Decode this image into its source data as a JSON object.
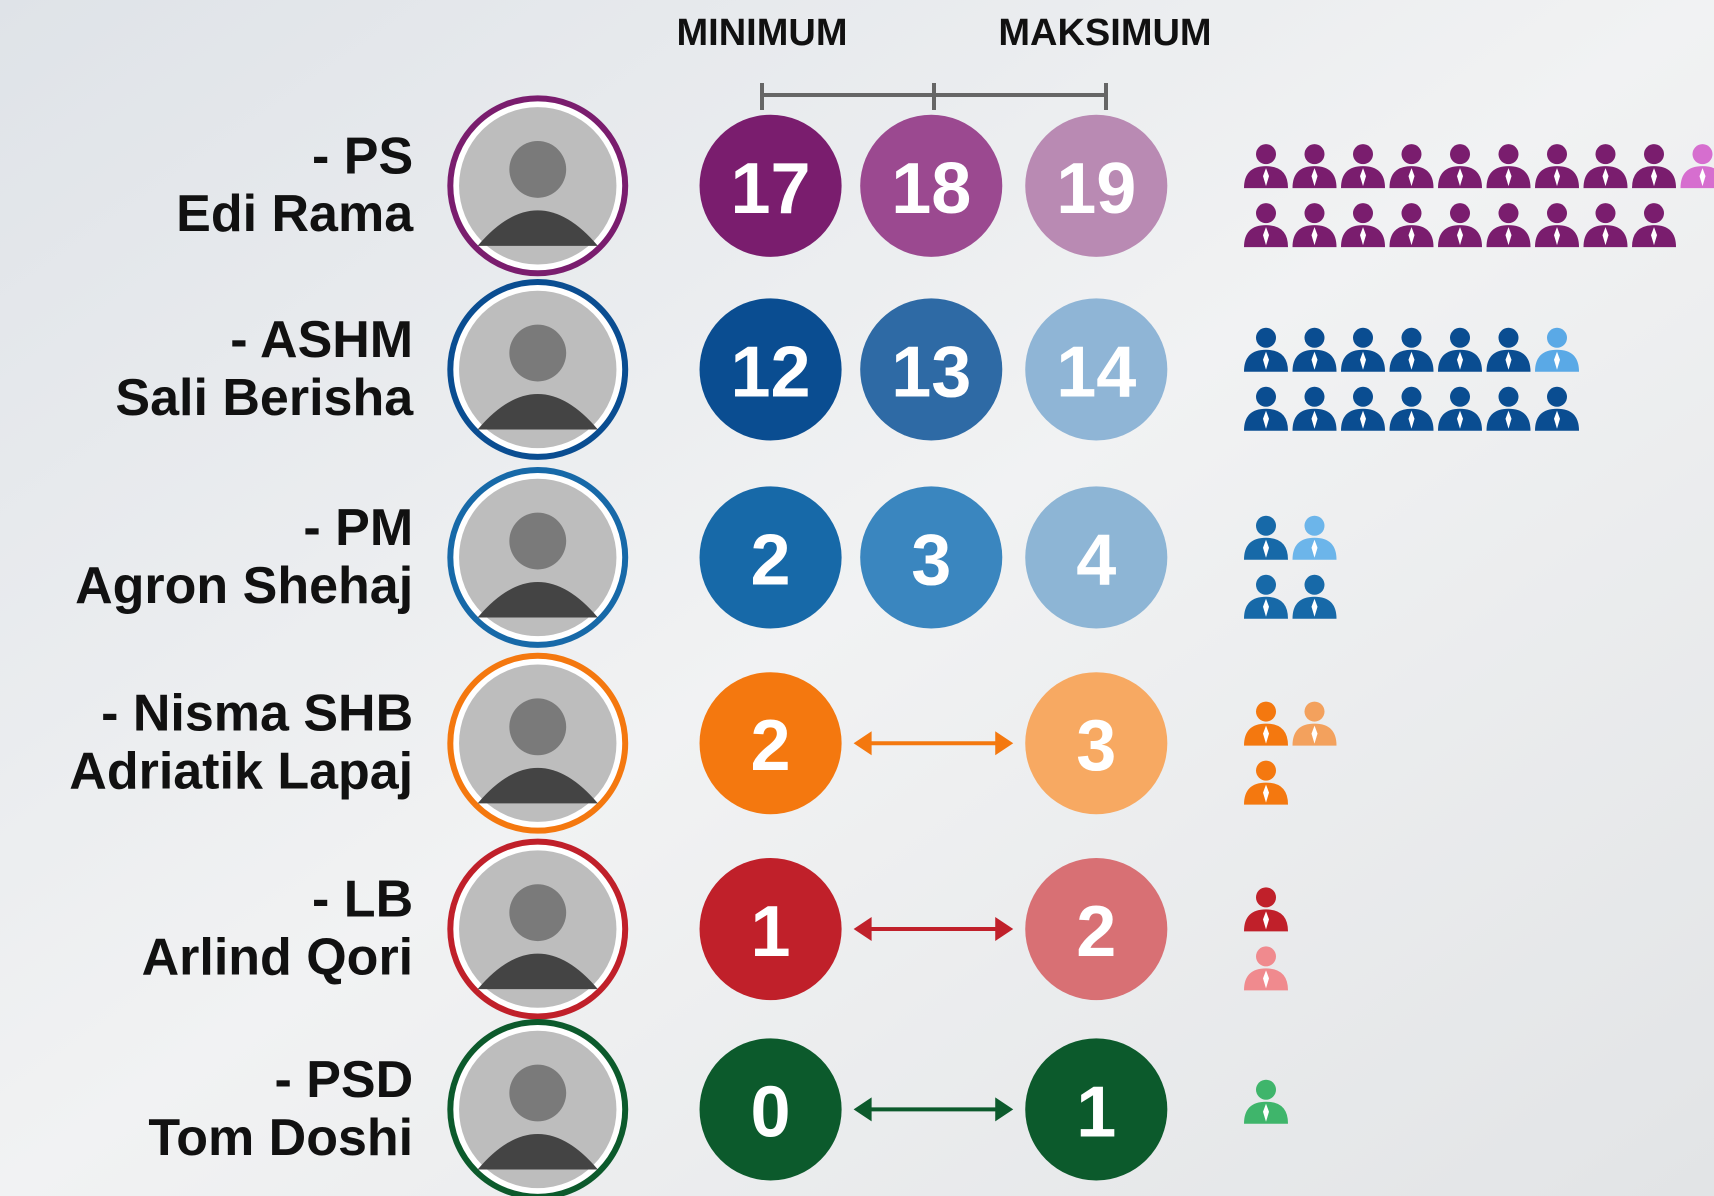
{
  "header": {
    "min_label": "MINIMUM",
    "max_label": "MAKSIMUM"
  },
  "rows": [
    {
      "party": "- PS",
      "name": "Edi Rama",
      "values": [
        17,
        18,
        19
      ],
      "colors": [
        "#7a1d6e",
        "#9b4990",
        "#b98ab3"
      ],
      "ring": "#7a1d6e",
      "icon_color": "#7a1d6e",
      "icon_light": "#d66ecf"
    },
    {
      "party": "- ASHM",
      "name": "Sali Berisha",
      "values": [
        12,
        13,
        14
      ],
      "colors": [
        "#0a4d91",
        "#2e6aa5",
        "#8fb5d6"
      ],
      "ring": "#0a4d91",
      "icon_color": "#0a4d91",
      "icon_light": "#5aa9e6"
    },
    {
      "party": "- PM",
      "name": "Agron Shehaj",
      "values": [
        2,
        3,
        4
      ],
      "colors": [
        "#1769a8",
        "#3a86bf",
        "#8db5d5"
      ],
      "ring": "#1769a8",
      "icon_color": "#1769a8",
      "icon_light": "#6cb5ea"
    },
    {
      "party": "- Nisma SHB",
      "name": "Adriatik Lapaj",
      "values": [
        2,
        3
      ],
      "colors": [
        "#f4780f",
        "#f7a962"
      ],
      "ring": "#f4780f",
      "icon_color": "#f4780f",
      "icon_light": "#f3a15d"
    },
    {
      "party": "- LB",
      "name": "Arlind Qori",
      "values": [
        1,
        2
      ],
      "colors": [
        "#c0202a",
        "#d87074"
      ],
      "ring": "#c0202a",
      "icon_color": "#c0202a",
      "icon_light": "#f08a8e"
    },
    {
      "party": "- PSD",
      "name": "Tom Doshi",
      "values": [
        0,
        1
      ],
      "colors": [
        "#0c5a2c",
        "#0c5a2c"
      ],
      "ring": "#0c5a2c",
      "icon_color": "#0c5a2c",
      "icon_light": "#3fb56b"
    }
  ]
}
